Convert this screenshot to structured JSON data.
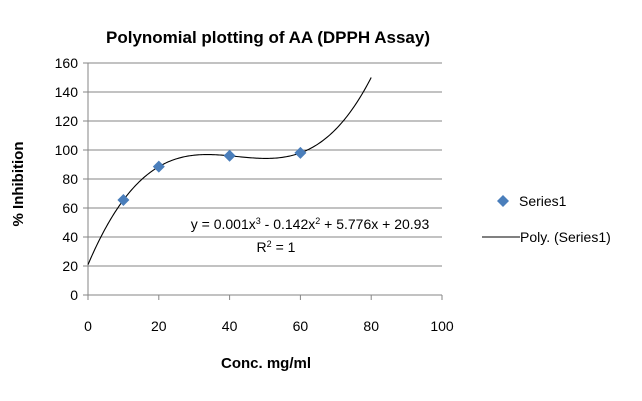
{
  "chart_data": {
    "type": "scatter",
    "title": "Polynomial plotting of AA (DPPH Assay)",
    "xlabel": "Conc. mg/ml",
    "ylabel": "% Inhibition",
    "xlim": [
      0,
      100
    ],
    "ylim": [
      0,
      160
    ],
    "x_ticks": [
      0,
      20,
      40,
      60,
      80,
      100
    ],
    "y_ticks": [
      0,
      20,
      40,
      60,
      80,
      100,
      120,
      140,
      160
    ],
    "grid": "horizontal major gridlines",
    "legend_position": "right",
    "series": [
      {
        "name": "Series1",
        "marker": "diamond",
        "color": "#4A7EBB",
        "x": [
          10,
          20,
          40,
          60
        ],
        "y": [
          65.5,
          88.5,
          96,
          98
        ]
      }
    ],
    "trendline": {
      "name": "Poly. (Series1)",
      "type": "polynomial",
      "order": 3,
      "color": "#000000",
      "coefficients": [
        0.001,
        -0.142,
        5.776,
        20.93
      ],
      "x_range": [
        0,
        80
      ],
      "equation_parts": {
        "a": "y = 0.001x",
        "b": " - 0.142x",
        "c": " + 5.776x + 20.93"
      },
      "r2_parts": {
        "a": "R",
        "b": " = 1"
      },
      "superscripts": {
        "cube": "3",
        "square": "2"
      }
    }
  }
}
